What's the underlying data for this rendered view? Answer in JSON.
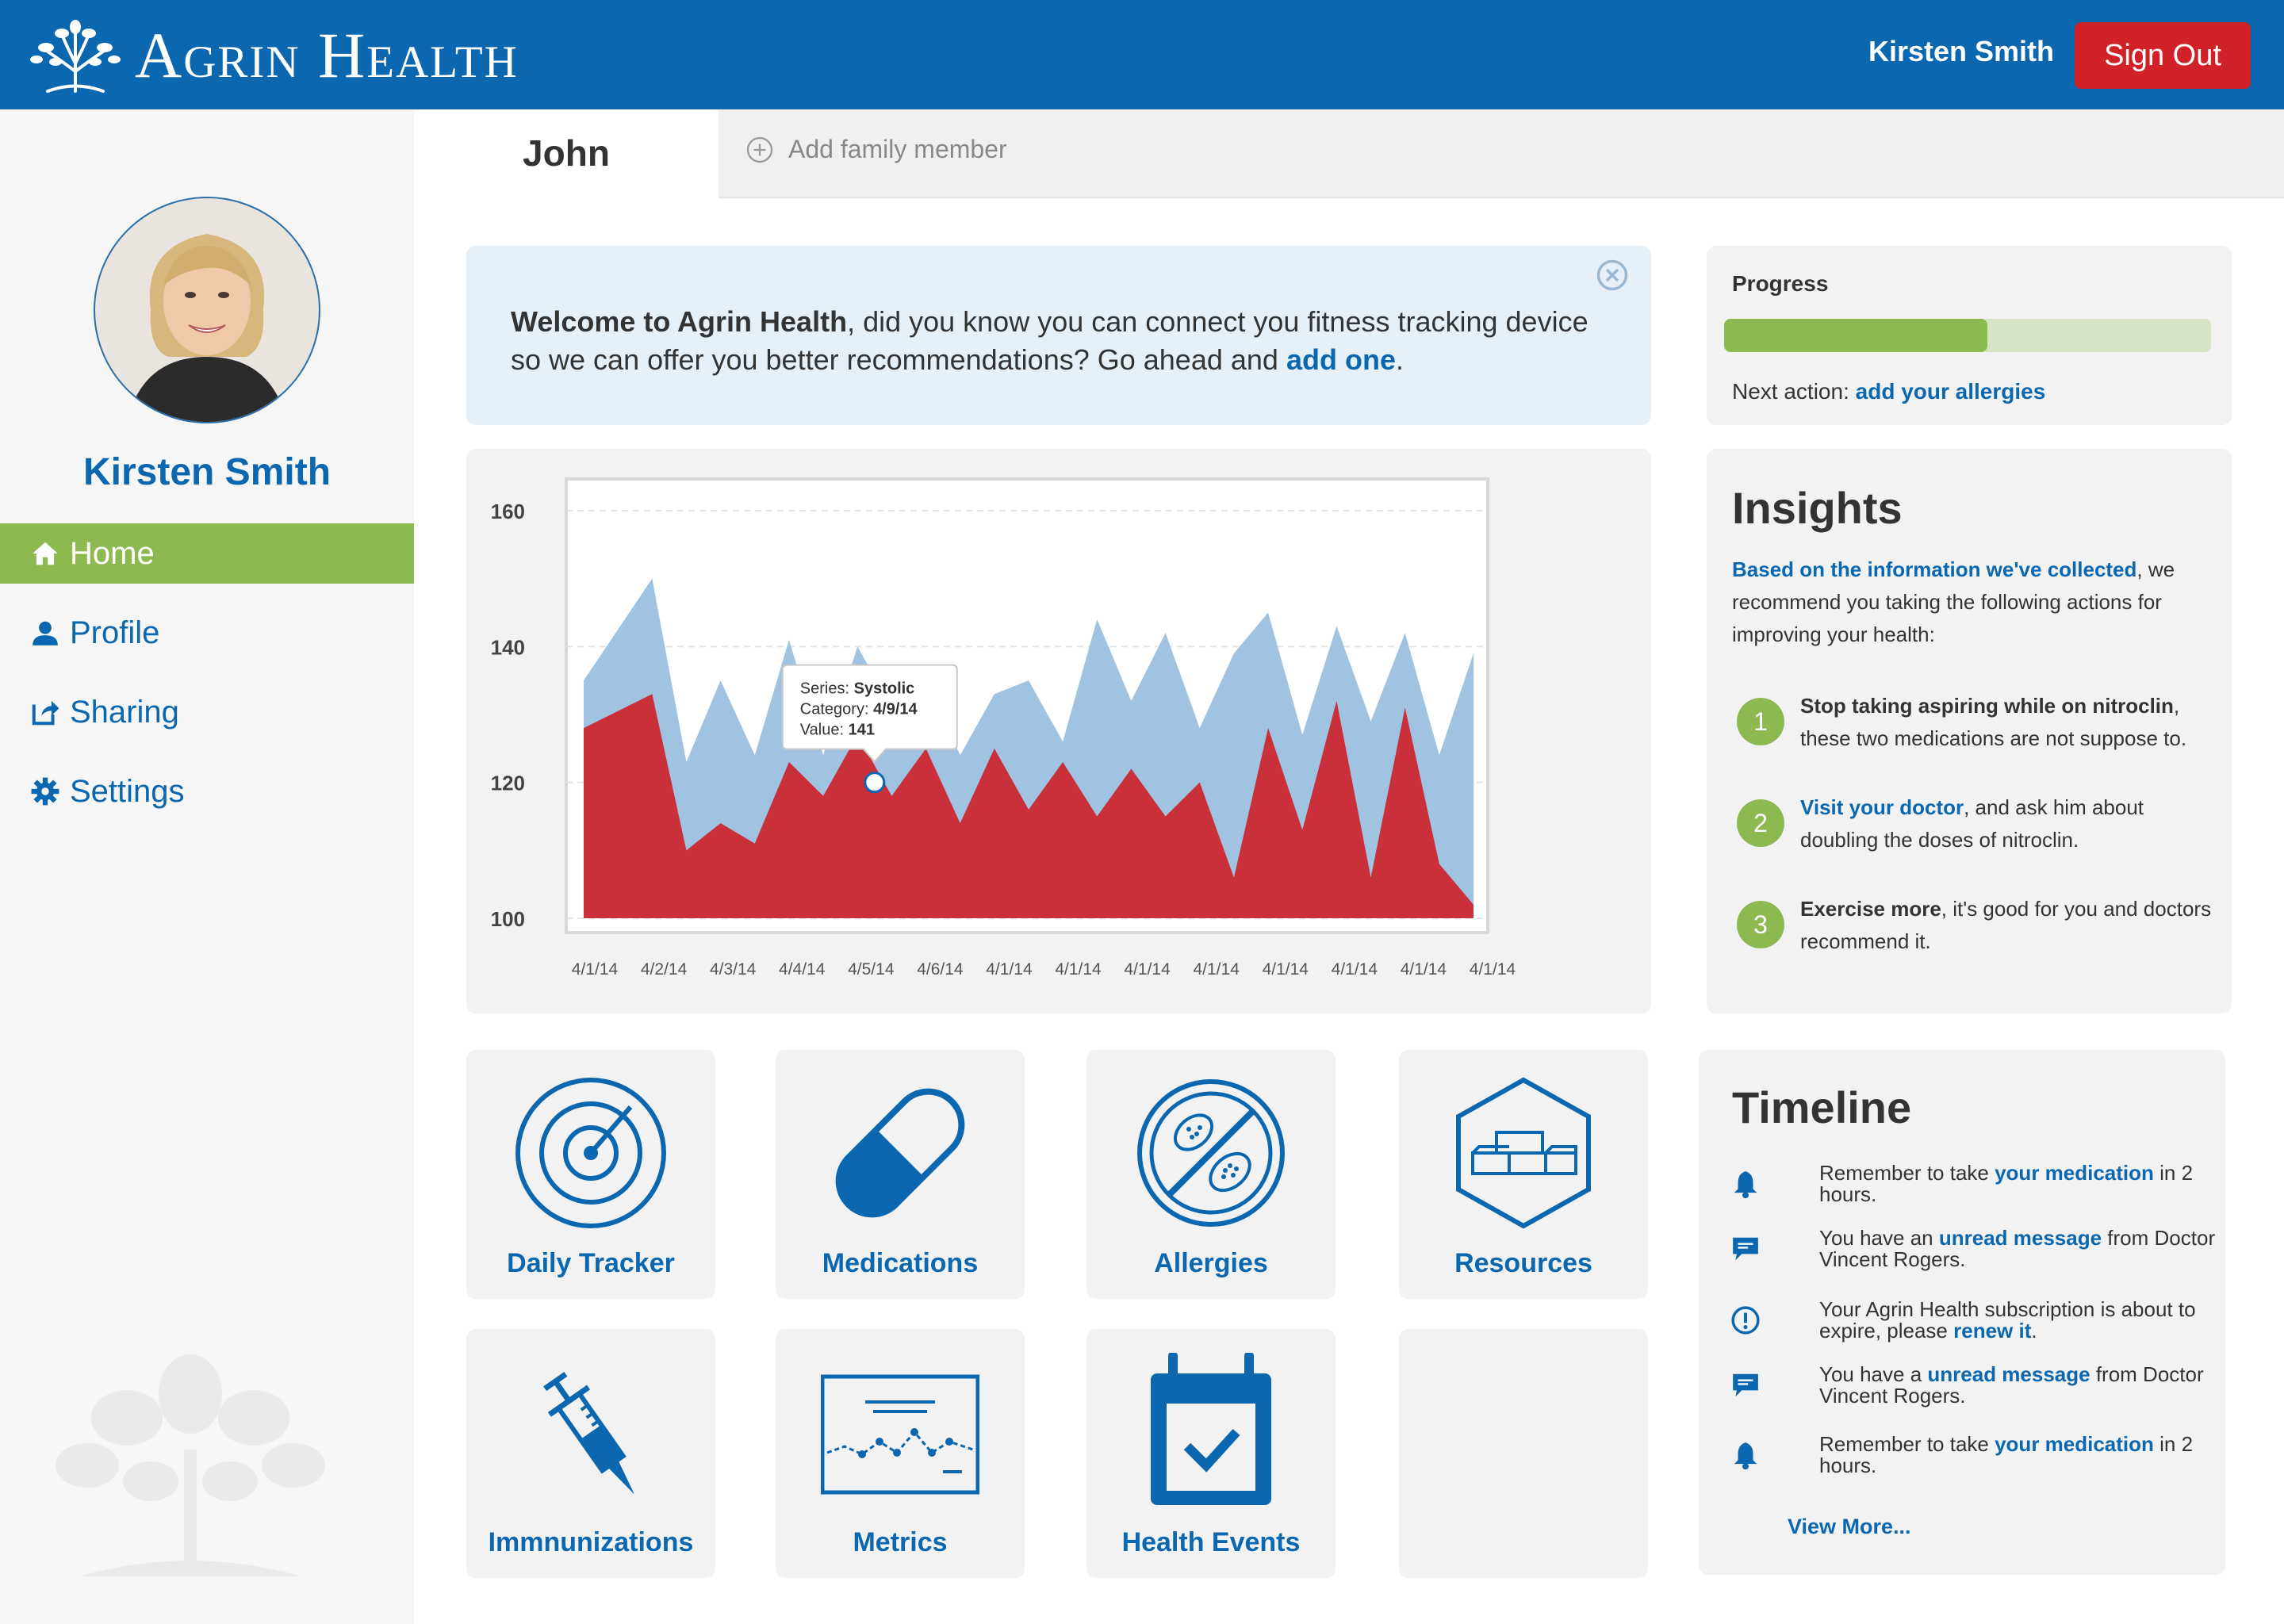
{
  "header": {
    "brand": "Agrin Health",
    "user_name": "Kirsten Smith",
    "sign_out_label": "Sign Out"
  },
  "sidebar": {
    "user_name": "Kirsten Smith",
    "nav": [
      {
        "label": "Home",
        "icon": "home-icon",
        "active": true
      },
      {
        "label": "Profile",
        "icon": "user-icon",
        "active": false
      },
      {
        "label": "Sharing",
        "icon": "share-icon",
        "active": false
      },
      {
        "label": "Settings",
        "icon": "gear-icon",
        "active": false
      }
    ]
  },
  "tabs": {
    "active": "John",
    "add_label": "Add family member"
  },
  "welcome": {
    "bold": "Welcome to Agrin Health",
    "text": ", did you know you can connect you fitness tracking device so we can offer you better recommendations? Go ahead and ",
    "link": "add one",
    "end": "."
  },
  "progress": {
    "label": "Progress",
    "percent": 54,
    "next_prefix": "Next action: ",
    "next_link": "add your allergies"
  },
  "chart_data": {
    "type": "area",
    "categories": [
      "4/1/14",
      "4/2/14",
      "4/3/14",
      "4/4/14",
      "4/5/14",
      "4/6/14",
      "4/1/14",
      "4/1/14",
      "4/1/14",
      "4/1/14",
      "4/1/14",
      "4/1/14",
      "4/1/14",
      "4/1/14"
    ],
    "x": [
      0,
      1,
      1.5,
      2,
      2.5,
      3,
      3.5,
      4,
      4.5,
      5,
      5.5,
      6,
      6.5,
      7,
      7.5,
      8,
      8.5,
      9,
      9.5,
      10,
      10.5,
      11,
      11.5,
      12,
      12.5,
      13
    ],
    "series": [
      {
        "name": "Systolic",
        "color": "#9fc3e0",
        "values": [
          135,
          150,
          123,
          135,
          124,
          141,
          124,
          140,
          131,
          135,
          124,
          133,
          135,
          126,
          144,
          132,
          142,
          128,
          139,
          145,
          127,
          143,
          129,
          142,
          124,
          139
        ]
      },
      {
        "name": "",
        "color": "#c9303a",
        "values": [
          128,
          133,
          110,
          114,
          111,
          123,
          118,
          127,
          118,
          125,
          114,
          125,
          116,
          123,
          115,
          122,
          115,
          120,
          106,
          128,
          113,
          132,
          106,
          131,
          108,
          102
        ]
      }
    ],
    "ylim": [
      100,
      160
    ],
    "yticks": [
      100,
      120,
      140,
      160
    ],
    "tooltip": {
      "series_label": "Series: ",
      "series_value": "Systolic",
      "category_label": "Category: ",
      "category_value": "4/9/14",
      "value_label": "Value: ",
      "value_value": "141",
      "point_x": 4.25,
      "point_y": 120
    }
  },
  "insights": {
    "title": "Insights",
    "intro_link": "Based on the information we've collected",
    "intro_text": ", we recommend you taking the following actions for improving your health:",
    "items": [
      {
        "num": "1",
        "bold": "Stop taking aspiring while on nitroclin",
        "text": ", these two medications are not suppose to."
      },
      {
        "num": "2",
        "link": "Visit your doctor",
        "text": ", and ask him about doubling the doses of nitroclin."
      },
      {
        "num": "3",
        "bold": "Exercise more",
        "text": ", it's good for you and doctors recommend it."
      }
    ]
  },
  "tiles": [
    {
      "label": "Daily Tracker",
      "icon": "radar-icon"
    },
    {
      "label": "Medications",
      "icon": "pill-icon"
    },
    {
      "label": "Allergies",
      "icon": "allergies-icon"
    },
    {
      "label": "Resources",
      "icon": "resources-icon"
    },
    {
      "label": "Immnunizations",
      "icon": "syringe-icon"
    },
    {
      "label": "Metrics",
      "icon": "metrics-icon"
    },
    {
      "label": "Health Events",
      "icon": "calendar-check-icon"
    }
  ],
  "timeline": {
    "title": "Timeline",
    "items": [
      {
        "icon": "bell-icon",
        "pre": "Remember to take ",
        "link": "your medication",
        "post": " in 2 hours."
      },
      {
        "icon": "message-icon",
        "pre": "You have an ",
        "link": "unread message",
        "post": " from Doctor Vincent Rogers."
      },
      {
        "icon": "alert-icon",
        "pre": "Your Agrin Health subscription is about to expire, please ",
        "link": "renew it",
        "post": "."
      },
      {
        "icon": "message-icon",
        "pre": "You have a ",
        "link": "unread message",
        "post": " from Doctor Vincent Rogers."
      },
      {
        "icon": "bell-icon",
        "pre": "Remember to take ",
        "link": "your medication",
        "post": " in 2 hours."
      }
    ],
    "view_more": "View More..."
  },
  "colors": {
    "brand_blue": "#0a67b0",
    "accent_green": "#8cba51",
    "danger_red": "#d12229"
  }
}
